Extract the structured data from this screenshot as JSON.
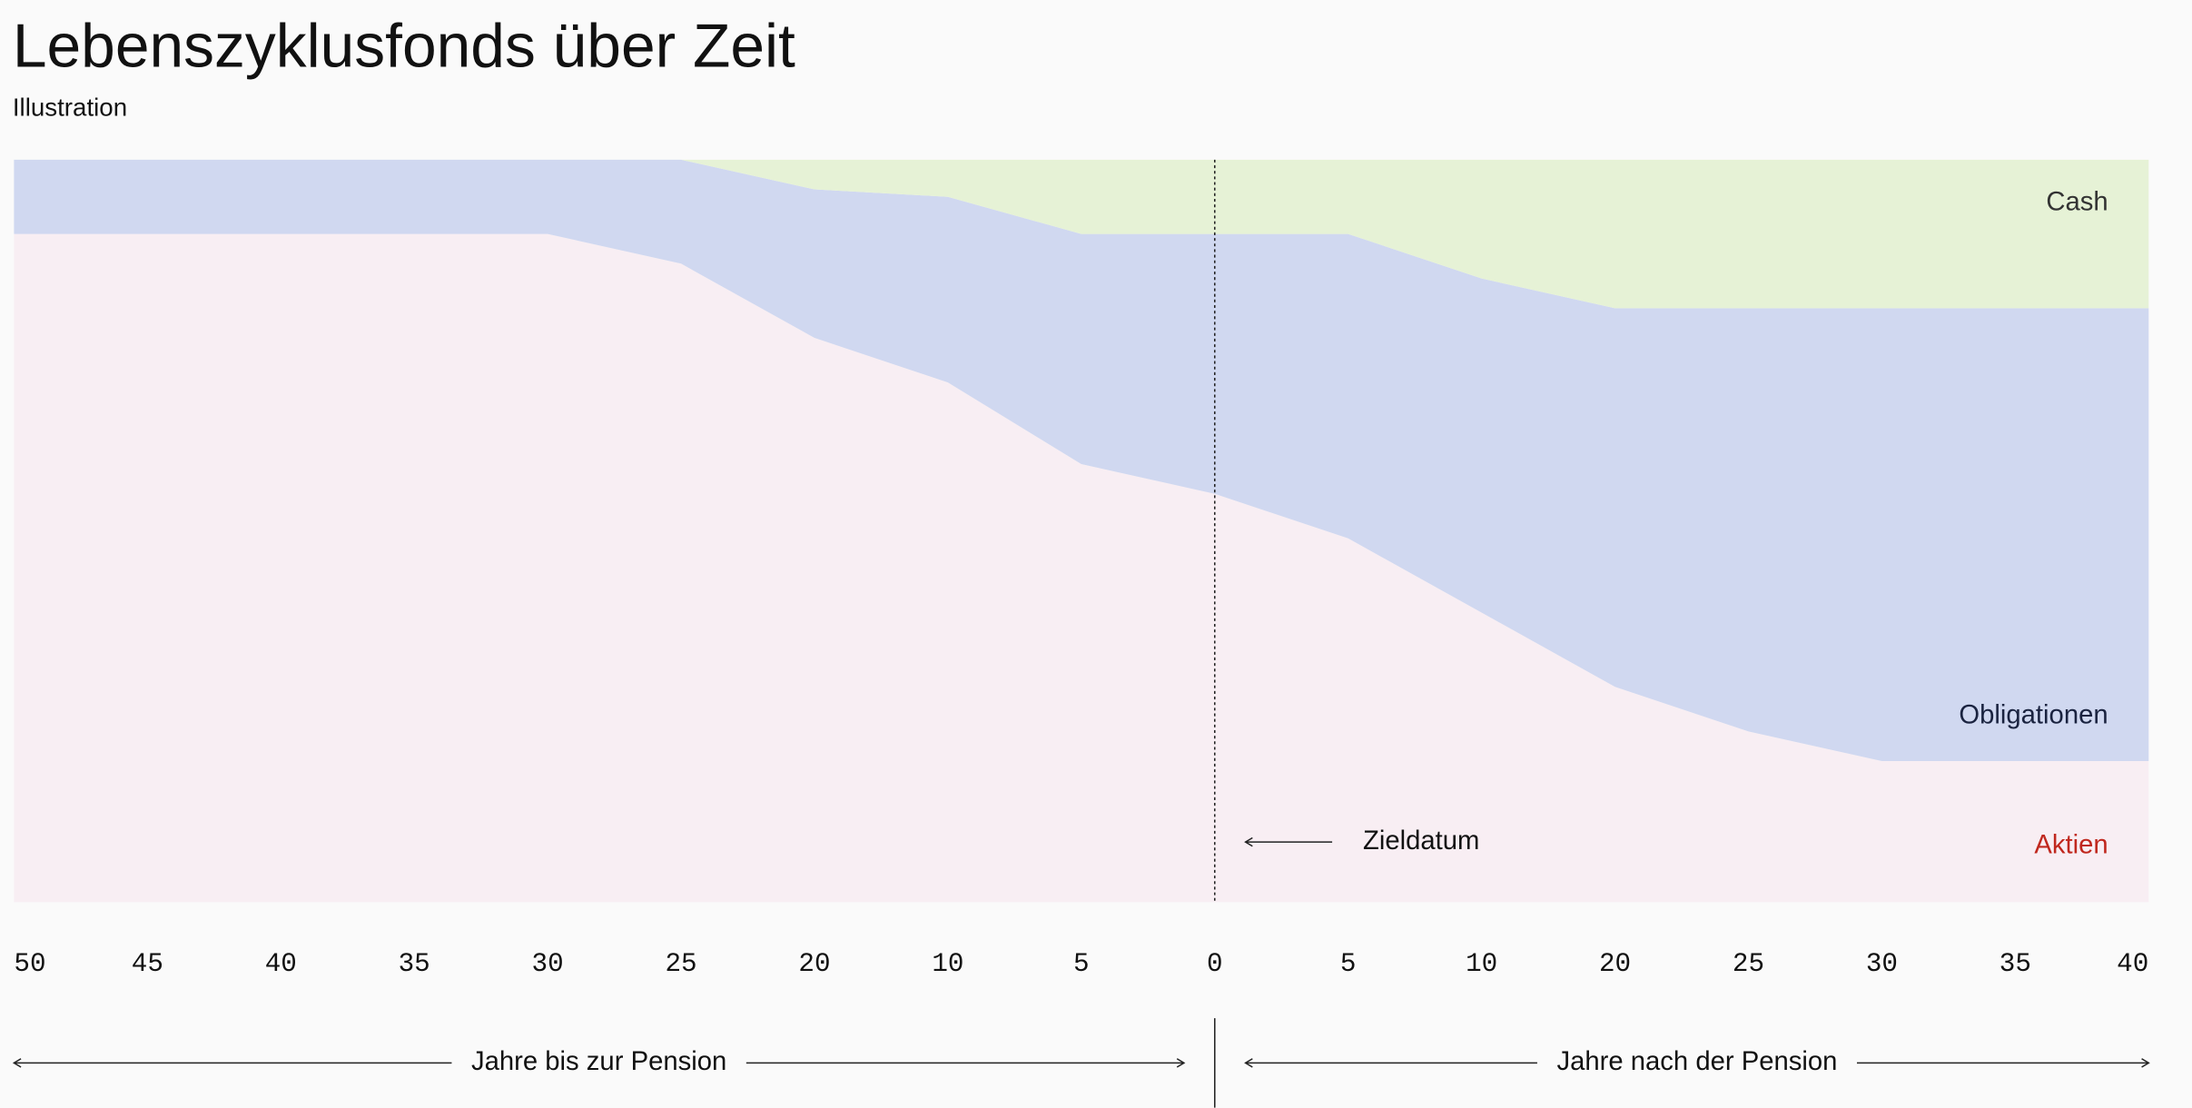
{
  "chart_data": {
    "type": "stacked-area",
    "title": "Lebenszyklusfonds über Zeit",
    "subtitle": "Illustration",
    "categories": [
      "50",
      "45",
      "40",
      "35",
      "30",
      "25",
      "20",
      "10",
      "5",
      "0",
      "5",
      "10",
      "20",
      "25",
      "30",
      "35",
      "40"
    ],
    "series": [
      {
        "name": "Aktien",
        "color": "#f8eef3",
        "label_color": "#c0281e",
        "values": [
          90,
          90,
          90,
          90,
          90,
          86,
          76,
          70,
          59,
          55,
          49,
          39,
          29,
          23,
          19,
          19,
          19
        ]
      },
      {
        "name": "Obligationen",
        "color": "#d0d8f0",
        "label_color": "#1a2340",
        "values": [
          10,
          10,
          10,
          10,
          10,
          14,
          20,
          25,
          31,
          35,
          41,
          45,
          51,
          57,
          61,
          61,
          61
        ]
      },
      {
        "name": "Cash",
        "color": "#e6f2d6",
        "label_color": "#333333",
        "values": [
          0,
          0,
          0,
          0,
          0,
          0,
          4,
          5,
          10,
          10,
          10,
          16,
          20,
          20,
          20,
          20,
          20
        ]
      }
    ],
    "ylim": [
      0,
      100
    ],
    "target_index": 9,
    "annotation": "Zieldatum",
    "x_axis_labels": {
      "left": "Jahre bis zur Pension",
      "right": "Jahre nach der Pension"
    }
  }
}
